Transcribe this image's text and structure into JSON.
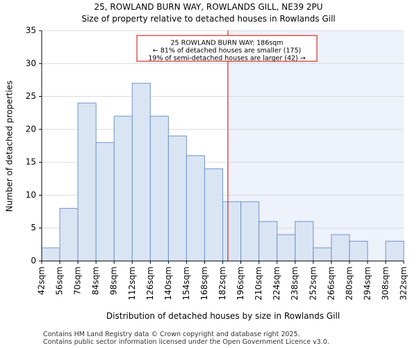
{
  "chart_data": {
    "type": "bar",
    "title_line1": "25, ROWLAND BURN WAY, ROWLANDS GILL, NE39 2PU",
    "title_line2": "Size of property relative to detached houses in Rowlands Gill",
    "xlabel": "Distribution of detached houses by size in Rowlands Gill",
    "ylabel": "Number of detached properties",
    "bin_width": 14,
    "bin_starts": [
      42,
      56,
      70,
      84,
      98,
      112,
      126,
      140,
      154,
      168,
      182,
      196,
      210,
      224,
      238,
      252,
      266,
      280,
      294,
      308
    ],
    "values": [
      2,
      8,
      24,
      18,
      22,
      27,
      22,
      19,
      16,
      14,
      9,
      9,
      6,
      4,
      6,
      2,
      4,
      3,
      0,
      3
    ],
    "x_tick_labels": [
      "42sqm",
      "56sqm",
      "70sqm",
      "84sqm",
      "98sqm",
      "112sqm",
      "126sqm",
      "140sqm",
      "154sqm",
      "168sqm",
      "182sqm",
      "196sqm",
      "210sqm",
      "224sqm",
      "238sqm",
      "252sqm",
      "266sqm",
      "280sqm",
      "294sqm",
      "308sqm",
      "322sqm"
    ],
    "xlim": [
      42,
      322
    ],
    "ylim": [
      0,
      35
    ],
    "y_ticks": [
      0,
      5,
      10,
      15,
      20,
      25,
      30,
      35
    ],
    "property_size": 186,
    "annotation_lines": [
      "25 ROWLAND BURN WAY: 186sqm",
      "← 81% of detached houses are smaller (175)",
      "19% of semi-detached houses are larger (42) →"
    ],
    "grid": "y",
    "colors": {
      "bar_fill": "#dae5f4",
      "bar_edge": "#6f93c8",
      "marker_line": "#cc0000",
      "highlight_region": "#eef2fb",
      "grid": "#d9d9d9"
    }
  },
  "footer": {
    "line1": "Contains HM Land Registry data © Crown copyright and database right 2025.",
    "line2": "Contains public sector information licensed under the Open Government Licence v3.0."
  }
}
